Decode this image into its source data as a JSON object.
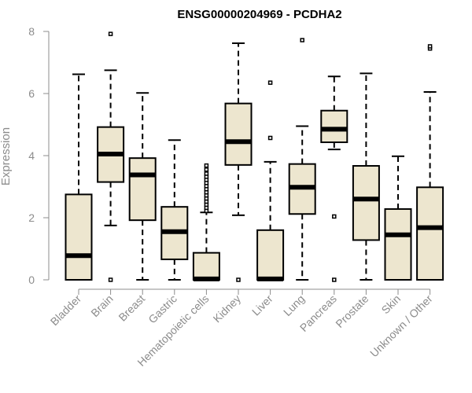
{
  "chart_data": {
    "type": "boxplot",
    "title": "ENSG00000204969 - PCDHA2",
    "ylabel": "Expression",
    "xlabel": "",
    "ylim": [
      0,
      8
    ],
    "yticks": [
      0,
      2,
      4,
      6,
      8
    ],
    "categories": [
      "Bladder",
      "Brain",
      "Breast",
      "Gastric",
      "Hematopoietic cells",
      "Kidney",
      "Liver",
      "Lung",
      "Pancreas",
      "Prostate",
      "Skin",
      "Unknown / Other"
    ],
    "boxes": [
      {
        "category": "Bladder",
        "whisker_low": 0,
        "q1": 0,
        "median": 0.78,
        "q3": 2.75,
        "whisker_high": 6.62,
        "outliers": []
      },
      {
        "category": "Brain",
        "whisker_low": 1.75,
        "q1": 3.15,
        "median": 4.05,
        "q3": 4.92,
        "whisker_high": 6.75,
        "outliers": [
          0,
          7.92
        ]
      },
      {
        "category": "Breast",
        "whisker_low": 0,
        "q1": 1.92,
        "median": 3.38,
        "q3": 3.92,
        "whisker_high": 6.02,
        "outliers": []
      },
      {
        "category": "Gastric",
        "whisker_low": 0,
        "q1": 0.66,
        "median": 1.55,
        "q3": 2.35,
        "whisker_high": 4.5,
        "outliers": []
      },
      {
        "category": "Hematopoietic cells",
        "whisker_low": 0,
        "q1": 0,
        "median": 0.03,
        "q3": 0.87,
        "whisker_high": 2.17,
        "outliers": [
          2.22,
          2.32,
          2.42,
          2.52,
          2.62,
          2.72,
          2.82,
          2.92,
          3.02,
          3.12,
          3.22,
          3.32,
          3.42,
          3.55,
          3.68
        ]
      },
      {
        "category": "Kidney",
        "whisker_low": 2.08,
        "q1": 3.7,
        "median": 4.45,
        "q3": 5.68,
        "whisker_high": 7.62,
        "outliers": [
          0
        ]
      },
      {
        "category": "Liver",
        "whisker_low": 0,
        "q1": 0,
        "median": 0.03,
        "q3": 1.6,
        "whisker_high": 3.8,
        "outliers": [
          4.57,
          6.35
        ]
      },
      {
        "category": "Lung",
        "whisker_low": 0,
        "q1": 2.12,
        "median": 2.98,
        "q3": 3.73,
        "whisker_high": 4.95,
        "outliers": [
          7.72
        ]
      },
      {
        "category": "Pancreas",
        "whisker_low": 4.2,
        "q1": 4.43,
        "median": 4.85,
        "q3": 5.45,
        "whisker_high": 6.55,
        "outliers": [
          0,
          2.04
        ]
      },
      {
        "category": "Prostate",
        "whisker_low": 0,
        "q1": 1.28,
        "median": 2.6,
        "q3": 3.67,
        "whisker_high": 6.65,
        "outliers": []
      },
      {
        "category": "Skin",
        "whisker_low": 0,
        "q1": 0,
        "median": 1.45,
        "q3": 2.28,
        "whisker_high": 3.98,
        "outliers": []
      },
      {
        "category": "Unknown / Other",
        "whisker_low": 0,
        "q1": 0,
        "median": 1.68,
        "q3": 2.98,
        "whisker_high": 6.05,
        "outliers": [
          7.45,
          7.52
        ]
      }
    ],
    "box_fill": "#ede6cf",
    "box_stroke": "#000000",
    "axis_color": "#8c8c8c",
    "grid": false,
    "legend": "none"
  }
}
